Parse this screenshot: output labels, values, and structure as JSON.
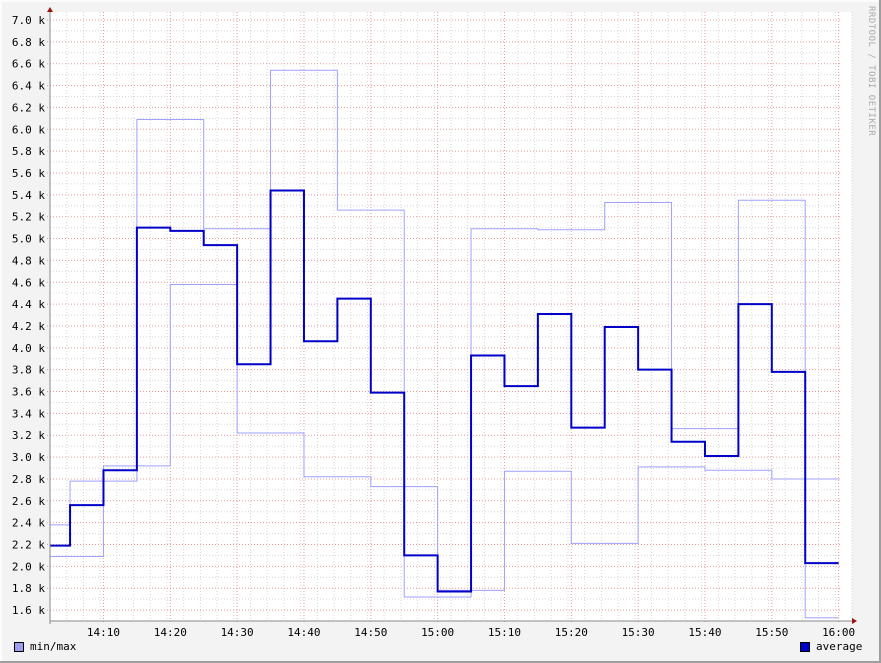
{
  "watermark": "RRDTOOL / TOBI OETIKER",
  "legend": {
    "minmax_label": "min/max",
    "average_label": "average"
  },
  "colors": {
    "background": "#f3f3f3",
    "plot_background": "#ffffff",
    "major_grid": "#e89a9a",
    "minor_grid": "#d6d6d6",
    "axis": "#888888",
    "minmax_line": "#a0a0ff",
    "average_line": "#0000c8",
    "minmax_swatch": "#9c9cf0",
    "average_swatch": "#0000c8",
    "arrow": "#a01010"
  },
  "chart_data": {
    "type": "line",
    "step": true,
    "title": "",
    "xlabel": "",
    "ylabel": "",
    "x_ticks": [
      "14:10",
      "14:20",
      "14:30",
      "14:40",
      "14:50",
      "15:00",
      "15:10",
      "15:20",
      "15:30",
      "15:40",
      "15:50",
      "16:00"
    ],
    "y_ticks": [
      "1.6 k",
      "1.8 k",
      "2.0 k",
      "2.2 k",
      "2.4 k",
      "2.6 k",
      "2.8 k",
      "3.0 k",
      "3.2 k",
      "3.4 k",
      "3.6 k",
      "3.8 k",
      "4.0 k",
      "4.2 k",
      "4.4 k",
      "4.6 k",
      "4.8 k",
      "5.0 k",
      "5.2 k",
      "5.4 k",
      "5.6 k",
      "5.8 k",
      "6.0 k",
      "6.2 k",
      "6.4 k",
      "6.6 k",
      "6.8 k",
      "7.0 k"
    ],
    "y_tick_values": [
      1600,
      1800,
      2000,
      2200,
      2400,
      2600,
      2800,
      3000,
      3200,
      3400,
      3600,
      3800,
      4000,
      4200,
      4400,
      4600,
      4800,
      5000,
      5200,
      5400,
      5600,
      5800,
      6000,
      6200,
      6400,
      6600,
      6800,
      7000
    ],
    "xlim": [
      "14:02",
      "16:02"
    ],
    "ylim": [
      1500,
      7000
    ],
    "grid": true,
    "legend_position": "bottom",
    "series": [
      {
        "name": "min/max",
        "role": "max",
        "points": [
          [
            "14:02",
            2380
          ],
          [
            "14:05",
            2780
          ],
          [
            "14:15",
            6090
          ],
          [
            "14:25",
            5090
          ],
          [
            "14:35",
            6540
          ],
          [
            "14:45",
            5260
          ],
          [
            "14:55",
            1720
          ],
          [
            "15:05",
            5090
          ],
          [
            "15:15",
            5080
          ],
          [
            "15:25",
            5330
          ],
          [
            "15:35",
            3260
          ],
          [
            "15:45",
            5350
          ],
          [
            "15:55",
            1530
          ],
          [
            "16:00",
            1530
          ]
        ]
      },
      {
        "name": "min/max",
        "role": "min",
        "points": [
          [
            "14:02",
            2090
          ],
          [
            "14:10",
            2920
          ],
          [
            "14:20",
            4580
          ],
          [
            "14:30",
            3220
          ],
          [
            "14:40",
            2820
          ],
          [
            "14:50",
            2730
          ],
          [
            "15:00",
            1780
          ],
          [
            "15:10",
            2870
          ],
          [
            "15:20",
            2210
          ],
          [
            "15:30",
            2910
          ],
          [
            "15:40",
            2880
          ],
          [
            "15:50",
            2800
          ],
          [
            "16:00",
            2800
          ]
        ]
      },
      {
        "name": "average",
        "role": "average",
        "points": [
          [
            "14:02",
            2190
          ],
          [
            "14:05",
            2560
          ],
          [
            "14:10",
            2880
          ],
          [
            "14:15",
            5100
          ],
          [
            "14:20",
            5070
          ],
          [
            "14:25",
            4940
          ],
          [
            "14:30",
            3850
          ],
          [
            "14:35",
            5440
          ],
          [
            "14:40",
            4060
          ],
          [
            "14:45",
            4450
          ],
          [
            "14:50",
            3590
          ],
          [
            "14:55",
            2100
          ],
          [
            "15:00",
            1770
          ],
          [
            "15:05",
            3930
          ],
          [
            "15:10",
            3650
          ],
          [
            "15:15",
            4310
          ],
          [
            "15:20",
            3270
          ],
          [
            "15:25",
            4190
          ],
          [
            "15:30",
            3800
          ],
          [
            "15:35",
            3140
          ],
          [
            "15:40",
            3010
          ],
          [
            "15:45",
            4400
          ],
          [
            "15:50",
            3780
          ],
          [
            "15:55",
            2030
          ],
          [
            "16:00",
            2030
          ]
        ]
      }
    ]
  }
}
